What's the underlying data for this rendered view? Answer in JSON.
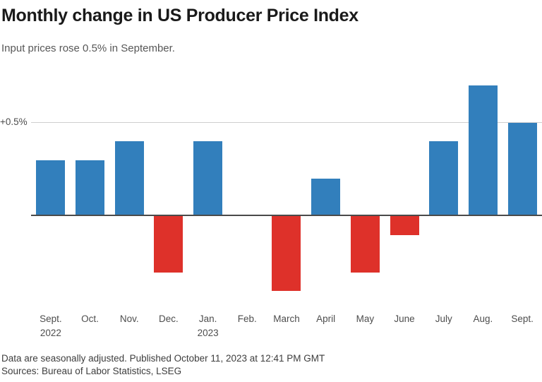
{
  "header": {
    "title": "Monthly change in US Producer Price Index",
    "subtitle": "Input prices rose 0.5% in September."
  },
  "chart_data": {
    "type": "bar",
    "categories": [
      "Sept.",
      "Oct.",
      "Nov.",
      "Dec.",
      "Jan.",
      "Feb.",
      "March",
      "April",
      "May",
      "June",
      "July",
      "Aug.",
      "Sept."
    ],
    "year_labels": [
      {
        "index": 0,
        "year": "2022"
      },
      {
        "index": 4,
        "year": "2023"
      }
    ],
    "values": [
      0.3,
      0.3,
      0.4,
      -0.3,
      0.4,
      0,
      -0.4,
      0.2,
      -0.3,
      -0.1,
      0.4,
      0.7,
      0.5
    ],
    "unit": "%",
    "title": "Monthly change in US Producer Price Index",
    "xlabel": "",
    "ylabel": "",
    "ylim": [
      -0.45,
      0.75
    ],
    "gridline_value": 0.5,
    "gridline_label": "+0.5%",
    "legend": "none",
    "grid": "single horizontal gridline at +0.5% plus zero baseline",
    "positive_color": "#327fbc",
    "negative_color": "#de312a",
    "baseline_color": "#4a4a4a",
    "gridline_color": "#cfcfcf"
  },
  "footer": {
    "note": "Data are seasonally adjusted. Published October 11, 2023 at 12:41 PM GMT",
    "sources": "Sources: Bureau of Labor Statistics, LSEG"
  }
}
